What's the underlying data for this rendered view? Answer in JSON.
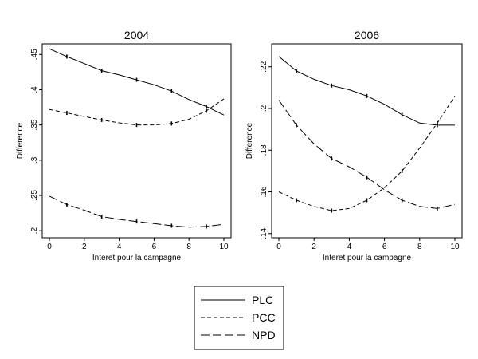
{
  "chart_data": [
    {
      "type": "line",
      "title": "2004",
      "xlabel": "Interet pour la campagne",
      "ylabel": "Difference",
      "xlim": [
        0,
        10
      ],
      "ylim": [
        0.19,
        0.465
      ],
      "xticks": [
        0,
        2,
        4,
        6,
        8,
        10
      ],
      "xtick_labels": [
        "0",
        "2",
        "4",
        "6",
        "8",
        "10"
      ],
      "yticks": [
        0.2,
        0.25,
        0.3,
        0.35,
        0.4,
        0.45
      ],
      "ytick_labels": [
        ".2",
        ".25",
        ".3",
        ".35",
        ".4",
        ".45"
      ],
      "grid": false,
      "series": [
        {
          "name": "PLC",
          "dash": "solid",
          "x": [
            0,
            1,
            2,
            3,
            4,
            5,
            6,
            7,
            8,
            9,
            10
          ],
          "y": [
            0.458,
            0.447,
            0.437,
            0.427,
            0.421,
            0.414,
            0.407,
            0.398,
            0.386,
            0.376,
            0.364
          ]
        },
        {
          "name": "PCC",
          "dash": "short",
          "x": [
            0,
            1,
            2,
            3,
            4,
            5,
            6,
            7,
            8,
            9,
            10
          ],
          "y": [
            0.372,
            0.367,
            0.362,
            0.357,
            0.353,
            0.35,
            0.35,
            0.352,
            0.358,
            0.37,
            0.387
          ]
        },
        {
          "name": "NPD",
          "dash": "long",
          "x": [
            0,
            1,
            2,
            3,
            4,
            5,
            6,
            7,
            8,
            9,
            10
          ],
          "y": [
            0.249,
            0.237,
            0.229,
            0.22,
            0.216,
            0.213,
            0.21,
            0.207,
            0.205,
            0.206,
            0.209
          ]
        }
      ]
    },
    {
      "type": "line",
      "title": "2006",
      "xlabel": "Interet pour la campagne",
      "ylabel": "Difference",
      "xlim": [
        0,
        10
      ],
      "ylim": [
        0.138,
        0.231
      ],
      "xticks": [
        0,
        2,
        4,
        6,
        8,
        10
      ],
      "xtick_labels": [
        "0",
        "2",
        "4",
        "6",
        "8",
        "10"
      ],
      "yticks": [
        0.14,
        0.16,
        0.18,
        0.2,
        0.22
      ],
      "ytick_labels": [
        ".14",
        ".16",
        ".18",
        ".2",
        ".22"
      ],
      "grid": false,
      "series": [
        {
          "name": "PLC",
          "dash": "solid",
          "x": [
            0,
            1,
            2,
            3,
            4,
            5,
            6,
            7,
            8,
            9,
            10
          ],
          "y": [
            0.225,
            0.218,
            0.214,
            0.211,
            0.209,
            0.206,
            0.202,
            0.197,
            0.193,
            0.192,
            0.192
          ]
        },
        {
          "name": "PCC",
          "dash": "short",
          "x": [
            0,
            1,
            2,
            3,
            4,
            5,
            6,
            7,
            8,
            9,
            10
          ],
          "y": [
            0.16,
            0.156,
            0.153,
            0.151,
            0.152,
            0.156,
            0.162,
            0.17,
            0.181,
            0.193,
            0.206
          ]
        },
        {
          "name": "NPD",
          "dash": "long",
          "x": [
            0,
            1,
            2,
            3,
            4,
            5,
            6,
            7,
            8,
            9,
            10
          ],
          "y": [
            0.204,
            0.192,
            0.183,
            0.176,
            0.172,
            0.167,
            0.161,
            0.156,
            0.153,
            0.152,
            0.154
          ]
        }
      ]
    }
  ],
  "legend": {
    "placement": "bottom-center",
    "entries": [
      {
        "label": "PLC",
        "dash": "solid"
      },
      {
        "label": "PCC",
        "dash": "short"
      },
      {
        "label": "NPD",
        "dash": "long"
      }
    ]
  }
}
